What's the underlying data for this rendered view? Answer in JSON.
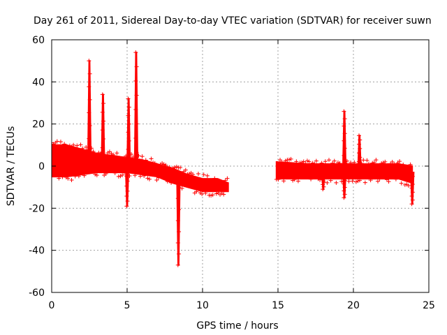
{
  "chart_data": {
    "type": "scatter",
    "title": "Day 261 of 2011, Sidereal Day-to-day VTEC variation (SDTVAR) for receiver suwn",
    "xlabel": "GPS time / hours",
    "ylabel": "SDTVAR / TECUs",
    "xlim": [
      0,
      25
    ],
    "ylim": [
      -60,
      60
    ],
    "xticks": [
      0,
      5,
      10,
      15,
      20,
      25
    ],
    "yticks": [
      -60,
      -40,
      -20,
      0,
      20,
      40,
      60
    ],
    "grid": true,
    "marker": "+",
    "color": "#ff0000",
    "series": [
      {
        "name": "SDTVAR",
        "segments": [
          {
            "x_start": 0.0,
            "x_end": 11.7,
            "center": [
              [
                0,
                2
              ],
              [
                1,
                1.5
              ],
              [
                2,
                1
              ],
              [
                3,
                0.5
              ],
              [
                4,
                0
              ],
              [
                5,
                0
              ],
              [
                6,
                -0.5
              ],
              [
                7,
                -2
              ],
              [
                8,
                -4
              ],
              [
                9,
                -6
              ],
              [
                10,
                -7.5
              ],
              [
                11,
                -8
              ],
              [
                11.7,
                -10
              ]
            ],
            "upper": [
              [
                0,
                10
              ],
              [
                1,
                10
              ],
              [
                2,
                8
              ],
              [
                3,
                6
              ],
              [
                4,
                5
              ],
              [
                5,
                4
              ],
              [
                6,
                3
              ],
              [
                7,
                1
              ],
              [
                8,
                -1
              ],
              [
                9,
                -4
              ],
              [
                10,
                -6
              ],
              [
                11,
                -6
              ],
              [
                11.7,
                -8
              ]
            ],
            "lower": [
              [
                0,
                -5
              ],
              [
                1,
                -5
              ],
              [
                2,
                -4
              ],
              [
                3,
                -3
              ],
              [
                4,
                -3
              ],
              [
                5,
                -3
              ],
              [
                6,
                -4
              ],
              [
                7,
                -5
              ],
              [
                8,
                -8
              ],
              [
                9,
                -10
              ],
              [
                10,
                -12
              ],
              [
                11,
                -12
              ],
              [
                11.7,
                -12
              ]
            ]
          },
          {
            "x_start": 14.9,
            "x_end": 23.9,
            "center": [
              [
                14.9,
                -2
              ],
              [
                17,
                -2
              ],
              [
                19,
                -2
              ],
              [
                21,
                -2
              ],
              [
                23,
                -2
              ],
              [
                23.9,
                -3
              ]
            ],
            "upper": [
              [
                14.9,
                2
              ],
              [
                17,
                1
              ],
              [
                19,
                1
              ],
              [
                21,
                1
              ],
              [
                23,
                1
              ],
              [
                23.9,
                0
              ]
            ],
            "lower": [
              [
                14.9,
                -6
              ],
              [
                17,
                -6
              ],
              [
                19,
                -6
              ],
              [
                21,
                -6
              ],
              [
                23,
                -6
              ],
              [
                23.9,
                -8
              ]
            ]
          }
        ],
        "peaks": [
          {
            "x": 2.5,
            "y": 50
          },
          {
            "x": 3.4,
            "y": 34
          },
          {
            "x": 5.1,
            "y": 32
          },
          {
            "x": 5.6,
            "y": 54
          },
          {
            "x": 19.4,
            "y": 26
          },
          {
            "x": 20.4,
            "y": 14.5
          }
        ],
        "dips": [
          {
            "x": 5.0,
            "y": -19
          },
          {
            "x": 8.4,
            "y": -47
          },
          {
            "x": 18.0,
            "y": -11
          },
          {
            "x": 19.4,
            "y": -15
          },
          {
            "x": 23.9,
            "y": -18
          }
        ]
      }
    ]
  }
}
